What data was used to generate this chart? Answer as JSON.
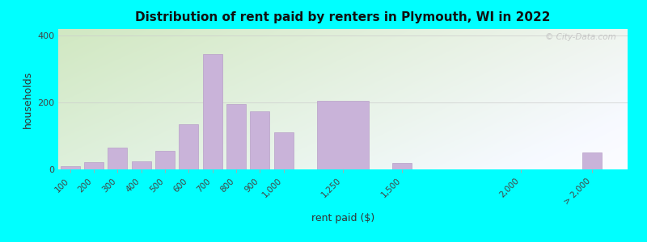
{
  "title": "Distribution of rent paid by renters in Plymouth, WI in 2022",
  "xlabel": "rent paid ($)",
  "ylabel": "households",
  "bar_color": "#c9b3d9",
  "bar_edgecolor": "#b8a0c8",
  "background_outer": "#00ffff",
  "yticks": [
    0,
    200,
    400
  ],
  "ylim": [
    0,
    420
  ],
  "categories": [
    "100",
    "200",
    "300",
    "400",
    "500",
    "600",
    "700",
    "800",
    "900",
    "1,000",
    "1,250",
    "1,500",
    "2,000",
    "> 2,000"
  ],
  "values": [
    10,
    22,
    65,
    25,
    55,
    135,
    345,
    195,
    175,
    110,
    205,
    20,
    0,
    50
  ],
  "positions": [
    100,
    200,
    300,
    400,
    500,
    600,
    700,
    800,
    900,
    1000,
    1250,
    1500,
    2000,
    2300
  ],
  "bar_widths": [
    90,
    90,
    90,
    90,
    90,
    90,
    90,
    90,
    90,
    90,
    240,
    90,
    90,
    90
  ],
  "xtick_positions": [
    100,
    200,
    300,
    400,
    500,
    600,
    700,
    800,
    900,
    1000,
    1250,
    1500,
    2000,
    2300
  ],
  "watermark": "© City-Data.com"
}
